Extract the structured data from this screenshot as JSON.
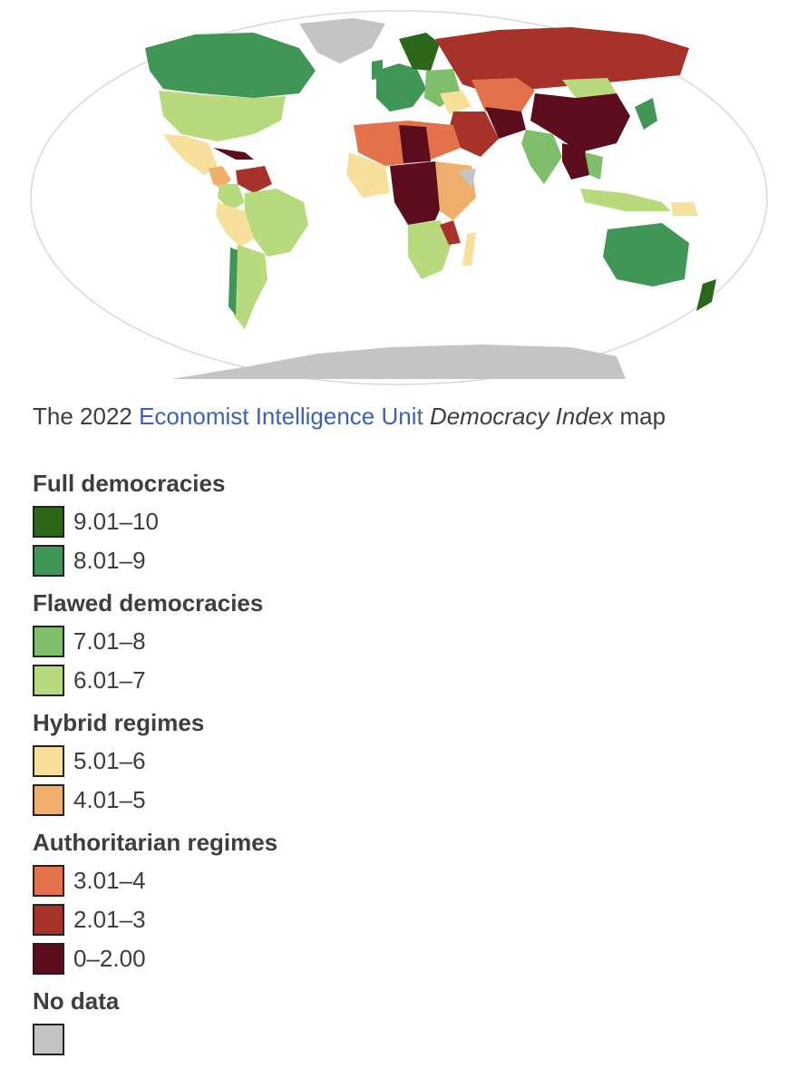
{
  "caption": {
    "prefix": "The 2022 ",
    "link": "Economist Intelligence Unit",
    "italic": "Democracy Index",
    "suffix": " map"
  },
  "legend": {
    "groups": [
      {
        "title": "Full democracies",
        "items": [
          {
            "label": "9.01–10",
            "color": "#2b6619"
          },
          {
            "label": "8.01–9",
            "color": "#3f9655"
          }
        ]
      },
      {
        "title": "Flawed democracies",
        "items": [
          {
            "label": "7.01–8",
            "color": "#7fbe6a"
          },
          {
            "label": "6.01–7",
            "color": "#b6da7c"
          }
        ]
      },
      {
        "title": "Hybrid regimes",
        "items": [
          {
            "label": "5.01–6",
            "color": "#f6e09b"
          },
          {
            "label": "4.01–5",
            "color": "#efae6b"
          }
        ]
      },
      {
        "title": "Authoritarian regimes",
        "items": [
          {
            "label": "3.01–4",
            "color": "#e2714c"
          },
          {
            "label": "2.01–3",
            "color": "#a7322a"
          },
          {
            "label": "0–2.00",
            "color": "#5b0d1c"
          }
        ]
      },
      {
        "title": "No data",
        "items": [
          {
            "label": "",
            "color": "#c4c4c4"
          }
        ]
      }
    ]
  }
}
